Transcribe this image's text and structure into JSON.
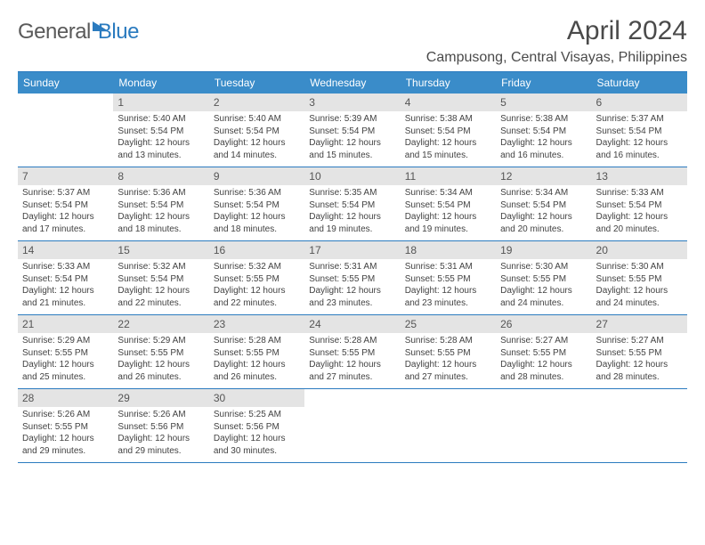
{
  "brand": {
    "part1": "General",
    "part2": "Blue"
  },
  "title": "April 2024",
  "subtitle": "Campusong, Central Visayas, Philippines",
  "colors": {
    "header_bg": "#3a8cc9",
    "border": "#2b7bbf",
    "daynum_bg": "#e4e4e4",
    "text": "#424242"
  },
  "weekdays": [
    "Sunday",
    "Monday",
    "Tuesday",
    "Wednesday",
    "Thursday",
    "Friday",
    "Saturday"
  ],
  "weeks": [
    [
      null,
      {
        "n": "1",
        "sr": "5:40 AM",
        "ss": "5:54 PM",
        "dl": "12 hours and 13 minutes."
      },
      {
        "n": "2",
        "sr": "5:40 AM",
        "ss": "5:54 PM",
        "dl": "12 hours and 14 minutes."
      },
      {
        "n": "3",
        "sr": "5:39 AM",
        "ss": "5:54 PM",
        "dl": "12 hours and 15 minutes."
      },
      {
        "n": "4",
        "sr": "5:38 AM",
        "ss": "5:54 PM",
        "dl": "12 hours and 15 minutes."
      },
      {
        "n": "5",
        "sr": "5:38 AM",
        "ss": "5:54 PM",
        "dl": "12 hours and 16 minutes."
      },
      {
        "n": "6",
        "sr": "5:37 AM",
        "ss": "5:54 PM",
        "dl": "12 hours and 16 minutes."
      }
    ],
    [
      {
        "n": "7",
        "sr": "5:37 AM",
        "ss": "5:54 PM",
        "dl": "12 hours and 17 minutes."
      },
      {
        "n": "8",
        "sr": "5:36 AM",
        "ss": "5:54 PM",
        "dl": "12 hours and 18 minutes."
      },
      {
        "n": "9",
        "sr": "5:36 AM",
        "ss": "5:54 PM",
        "dl": "12 hours and 18 minutes."
      },
      {
        "n": "10",
        "sr": "5:35 AM",
        "ss": "5:54 PM",
        "dl": "12 hours and 19 minutes."
      },
      {
        "n": "11",
        "sr": "5:34 AM",
        "ss": "5:54 PM",
        "dl": "12 hours and 19 minutes."
      },
      {
        "n": "12",
        "sr": "5:34 AM",
        "ss": "5:54 PM",
        "dl": "12 hours and 20 minutes."
      },
      {
        "n": "13",
        "sr": "5:33 AM",
        "ss": "5:54 PM",
        "dl": "12 hours and 20 minutes."
      }
    ],
    [
      {
        "n": "14",
        "sr": "5:33 AM",
        "ss": "5:54 PM",
        "dl": "12 hours and 21 minutes."
      },
      {
        "n": "15",
        "sr": "5:32 AM",
        "ss": "5:54 PM",
        "dl": "12 hours and 22 minutes."
      },
      {
        "n": "16",
        "sr": "5:32 AM",
        "ss": "5:55 PM",
        "dl": "12 hours and 22 minutes."
      },
      {
        "n": "17",
        "sr": "5:31 AM",
        "ss": "5:55 PM",
        "dl": "12 hours and 23 minutes."
      },
      {
        "n": "18",
        "sr": "5:31 AM",
        "ss": "5:55 PM",
        "dl": "12 hours and 23 minutes."
      },
      {
        "n": "19",
        "sr": "5:30 AM",
        "ss": "5:55 PM",
        "dl": "12 hours and 24 minutes."
      },
      {
        "n": "20",
        "sr": "5:30 AM",
        "ss": "5:55 PM",
        "dl": "12 hours and 24 minutes."
      }
    ],
    [
      {
        "n": "21",
        "sr": "5:29 AM",
        "ss": "5:55 PM",
        "dl": "12 hours and 25 minutes."
      },
      {
        "n": "22",
        "sr": "5:29 AM",
        "ss": "5:55 PM",
        "dl": "12 hours and 26 minutes."
      },
      {
        "n": "23",
        "sr": "5:28 AM",
        "ss": "5:55 PM",
        "dl": "12 hours and 26 minutes."
      },
      {
        "n": "24",
        "sr": "5:28 AM",
        "ss": "5:55 PM",
        "dl": "12 hours and 27 minutes."
      },
      {
        "n": "25",
        "sr": "5:28 AM",
        "ss": "5:55 PM",
        "dl": "12 hours and 27 minutes."
      },
      {
        "n": "26",
        "sr": "5:27 AM",
        "ss": "5:55 PM",
        "dl": "12 hours and 28 minutes."
      },
      {
        "n": "27",
        "sr": "5:27 AM",
        "ss": "5:55 PM",
        "dl": "12 hours and 28 minutes."
      }
    ],
    [
      {
        "n": "28",
        "sr": "5:26 AM",
        "ss": "5:55 PM",
        "dl": "12 hours and 29 minutes."
      },
      {
        "n": "29",
        "sr": "5:26 AM",
        "ss": "5:56 PM",
        "dl": "12 hours and 29 minutes."
      },
      {
        "n": "30",
        "sr": "5:25 AM",
        "ss": "5:56 PM",
        "dl": "12 hours and 30 minutes."
      },
      null,
      null,
      null,
      null
    ]
  ],
  "labels": {
    "sunrise": "Sunrise:",
    "sunset": "Sunset:",
    "daylight": "Daylight:"
  }
}
